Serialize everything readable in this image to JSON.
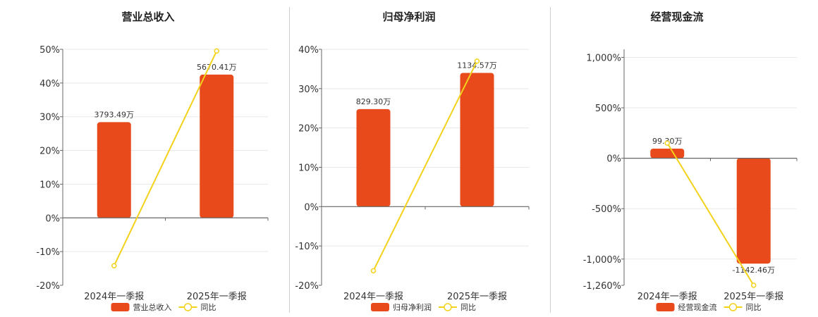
{
  "colors": {
    "bar": "#e84a1b",
    "line": "#f2d21b",
    "axis": "#666666",
    "grid": "#e8e8e8"
  },
  "legend_line_label": "同比",
  "chart_data": [
    {
      "type": "bar",
      "title": "营业总收入",
      "categories": [
        "2024年一季报",
        "2025年一季报"
      ],
      "bar_labels": [
        "3793.49万",
        "5670.41万"
      ],
      "bar_values": [
        28.4,
        42.5
      ],
      "line_values": [
        -14.2,
        49.5
      ],
      "ylim": [
        -20,
        50
      ],
      "yticks": [
        -20,
        -10,
        0,
        10,
        20,
        30,
        40,
        50
      ],
      "ytick_labels": [
        "-20%",
        "-10%",
        "0%",
        "10%",
        "20%",
        "30%",
        "40%",
        "50%"
      ],
      "legend_bar_label": "营业总收入"
    },
    {
      "type": "bar",
      "title": "归母净利润",
      "categories": [
        "2024年一季报",
        "2025年一季报"
      ],
      "bar_labels": [
        "829.30万",
        "1134.57万"
      ],
      "bar_values": [
        24.8,
        34.0
      ],
      "line_values": [
        -16.3,
        37.0
      ],
      "ylim": [
        -20,
        40
      ],
      "yticks": [
        -20,
        -10,
        0,
        10,
        20,
        30,
        40
      ],
      "ytick_labels": [
        "-20%",
        "-10%",
        "0%",
        "10%",
        "20%",
        "30%",
        "40%"
      ],
      "legend_bar_label": "归母净利润"
    },
    {
      "type": "bar",
      "title": "经营现金流",
      "categories": [
        "2024年一季报",
        "2025年一季报"
      ],
      "bar_labels": [
        "99.30万",
        "-1142.46万"
      ],
      "bar_values": [
        95,
        -1045
      ],
      "line_values": [
        150,
        -1260
      ],
      "ylim": [
        -1260,
        1080
      ],
      "yticks": [
        -1260,
        -1000,
        -500,
        0,
        500,
        1000
      ],
      "ytick_labels": [
        "-1,260%",
        "-1,000%",
        "-500%",
        "0%",
        "500%",
        "1,000%"
      ],
      "legend_bar_label": "经营现金流"
    }
  ]
}
